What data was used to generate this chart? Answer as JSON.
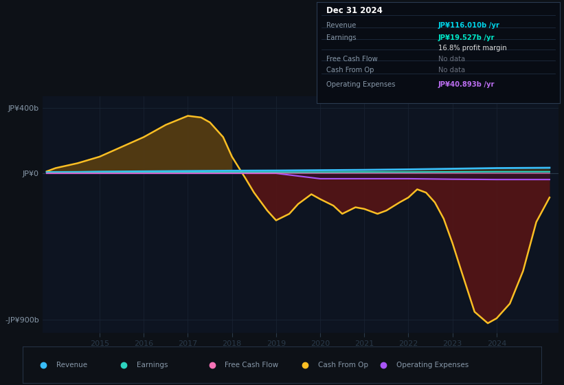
{
  "bg_color": "#0d1117",
  "plot_bg": "#0d1421",
  "ylim": [
    -980,
    470
  ],
  "xlim": [
    2013.7,
    2025.4
  ],
  "yticks_vals": [
    -900,
    0,
    400
  ],
  "ytick_labels": [
    "-JP¥900b",
    "JP¥0",
    "JP¥400b"
  ],
  "xticks": [
    2015,
    2016,
    2017,
    2018,
    2019,
    2020,
    2021,
    2022,
    2023,
    2024
  ],
  "legend": [
    {
      "label": "Revenue",
      "color": "#38bdf8"
    },
    {
      "label": "Earnings",
      "color": "#2dd4bf"
    },
    {
      "label": "Free Cash Flow",
      "color": "#f472b6"
    },
    {
      "label": "Cash From Op",
      "color": "#fbbf24"
    },
    {
      "label": "Operating Expenses",
      "color": "#a855f7"
    }
  ],
  "revenue_x": [
    2013.8,
    2014.5,
    2015,
    2016,
    2017,
    2018,
    2019,
    2020,
    2021,
    2022,
    2023,
    2024,
    2025.2
  ],
  "revenue_y": [
    5,
    6,
    8,
    10,
    12,
    14,
    15,
    17,
    19,
    22,
    26,
    30,
    32
  ],
  "earnings_x": [
    2013.8,
    2014.5,
    2015,
    2016,
    2017,
    2018,
    2019,
    2020,
    2021,
    2022,
    2023,
    2024,
    2025.2
  ],
  "earnings_y": [
    2,
    2.5,
    3,
    3.5,
    4,
    5,
    5,
    5,
    6,
    6,
    7,
    8,
    8
  ],
  "op_exp_x": [
    2013.8,
    2018,
    2019,
    2020,
    2021,
    2022,
    2023,
    2024,
    2025.2
  ],
  "op_exp_y": [
    -2,
    -2,
    -2,
    -35,
    -35,
    -35,
    -38,
    -40,
    -40
  ],
  "cash_op_x": [
    2013.8,
    2014.0,
    2014.5,
    2015.0,
    2015.5,
    2016.0,
    2016.5,
    2017.0,
    2017.3,
    2017.5,
    2017.8,
    2018.0,
    2018.3,
    2018.5,
    2018.8,
    2019.0,
    2019.3,
    2019.5,
    2019.8,
    2020.0,
    2020.3,
    2020.5,
    2020.8,
    2021.0,
    2021.3,
    2021.5,
    2021.8,
    2022.0,
    2022.2,
    2022.4,
    2022.6,
    2022.8,
    2023.0,
    2023.2,
    2023.5,
    2023.8,
    2024.0,
    2024.3,
    2024.6,
    2024.9,
    2025.2
  ],
  "cash_op_y": [
    10,
    30,
    60,
    100,
    160,
    220,
    295,
    350,
    340,
    310,
    220,
    100,
    -30,
    -120,
    -230,
    -290,
    -250,
    -190,
    -130,
    -160,
    -200,
    -250,
    -210,
    -220,
    -250,
    -230,
    -180,
    -150,
    -100,
    -120,
    -180,
    -280,
    -430,
    -600,
    -850,
    -920,
    -890,
    -800,
    -600,
    -300,
    -150
  ],
  "infobox": {
    "date": "Dec 31 2024",
    "rows": [
      {
        "label": "Revenue",
        "value": "JP¥116.010b /yr",
        "vcolor": "#00d4e8"
      },
      {
        "label": "Earnings",
        "value": "JP¥19.527b /yr",
        "vcolor": "#00e8c8"
      },
      {
        "label": "",
        "value": "16.8% profit margin",
        "vcolor": "#e0e0e0"
      },
      {
        "label": "Free Cash Flow",
        "value": "No data",
        "vcolor": "#6b7280"
      },
      {
        "label": "Cash From Op",
        "value": "No data",
        "vcolor": "#6b7280"
      },
      {
        "label": "Operating Expenses",
        "value": "JP¥40.893b /yr",
        "vcolor": "#bb6ef0"
      }
    ]
  }
}
